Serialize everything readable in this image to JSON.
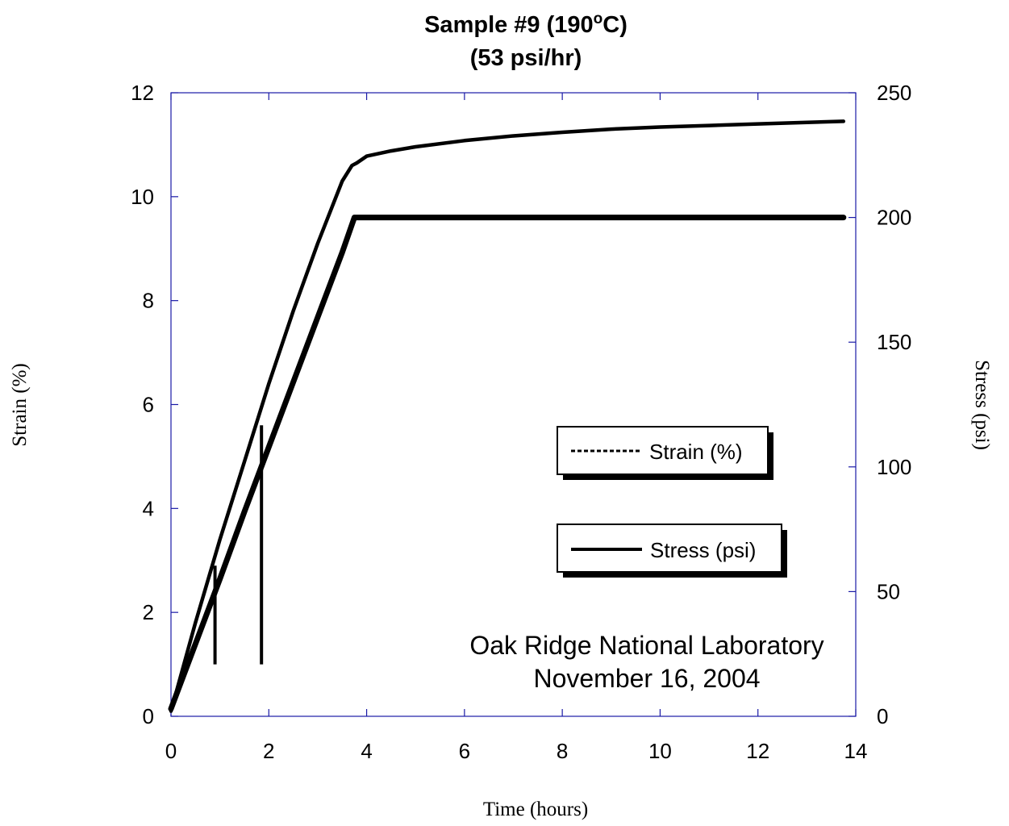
{
  "chart_data": {
    "type": "line",
    "title_main": "Sample #9 (190",
    "title_sup": "o",
    "title_end": "C)",
    "subtitle": "(53 psi/hr)",
    "xlabel": "Time (hours)",
    "ylabel": "Strain (%)",
    "y2label": "Stress (psi)",
    "xlim": [
      0,
      14
    ],
    "ylim": [
      0,
      12
    ],
    "y2lim": [
      0,
      250
    ],
    "xticks": [
      0,
      2,
      4,
      6,
      8,
      10,
      12,
      14
    ],
    "yticks": [
      0,
      2,
      4,
      6,
      8,
      10,
      12
    ],
    "y2ticks": [
      0,
      50,
      100,
      150,
      200,
      250
    ],
    "grid": false,
    "legend_position": "middle-right",
    "series": [
      {
        "name": "Strain (%)",
        "axis": "left",
        "style": "dashed",
        "x": [
          0,
          0.5,
          1.0,
          1.5,
          2.0,
          2.5,
          3.0,
          3.5,
          3.7,
          3.8,
          4.0,
          4.5,
          5.0,
          6.0,
          7.0,
          8.0,
          9.0,
          10.0,
          11.0,
          12.0,
          13.0,
          13.75
        ],
        "y": [
          0.1,
          1.8,
          3.4,
          4.9,
          6.4,
          7.8,
          9.1,
          10.3,
          10.6,
          10.65,
          10.78,
          10.88,
          10.96,
          11.08,
          11.17,
          11.24,
          11.3,
          11.34,
          11.37,
          11.4,
          11.43,
          11.45
        ]
      },
      {
        "name": "Stress (psi)",
        "axis": "right",
        "style": "solid",
        "x": [
          0,
          0.5,
          1.0,
          1.5,
          2.0,
          2.5,
          3.0,
          3.5,
          3.75,
          4.0,
          6.0,
          8.0,
          10.0,
          12.0,
          13.75
        ],
        "y": [
          3,
          29,
          55,
          82,
          108,
          134,
          160,
          186,
          200,
          200,
          200,
          200,
          200,
          200,
          200
        ]
      }
    ],
    "spikes": [
      {
        "x": 0.9,
        "y_from": 1.0,
        "y_to": 2.9
      },
      {
        "x": 1.85,
        "y_from": 1.0,
        "y_to": 5.6
      }
    ],
    "annotation_line1": "Oak Ridge National Laboratory",
    "annotation_line2": "November 16, 2004",
    "colors": {
      "axis": "#1a1aa6",
      "line": "#000000",
      "background": "#ffffff"
    }
  }
}
